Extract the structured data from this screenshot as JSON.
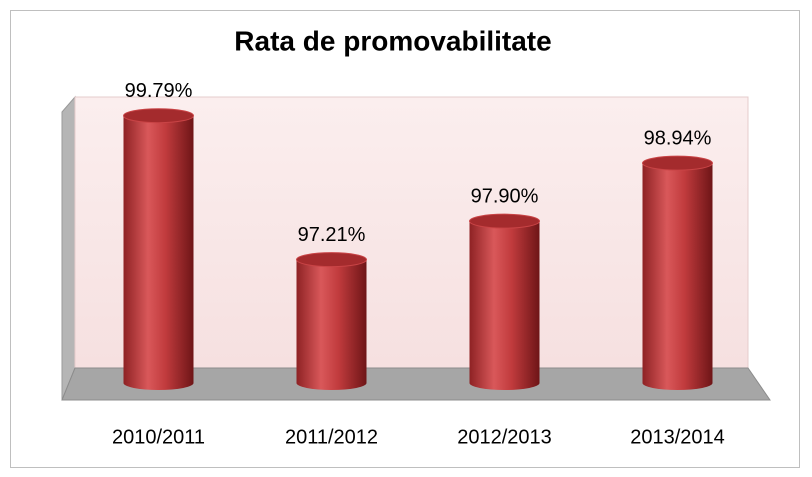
{
  "chart_data": {
    "type": "bar3d",
    "title": "Rata de promovabilitate",
    "categories": [
      "2010/2011",
      "2011/2012",
      "2012/2013",
      "2013/2014"
    ],
    "values": [
      99.79,
      97.21,
      97.9,
      98.94
    ],
    "value_labels": [
      "99.79%",
      "97.21%",
      "97.90%",
      "98.94%"
    ],
    "color": "#c0393b",
    "ylim": [
      95,
      100
    ]
  }
}
